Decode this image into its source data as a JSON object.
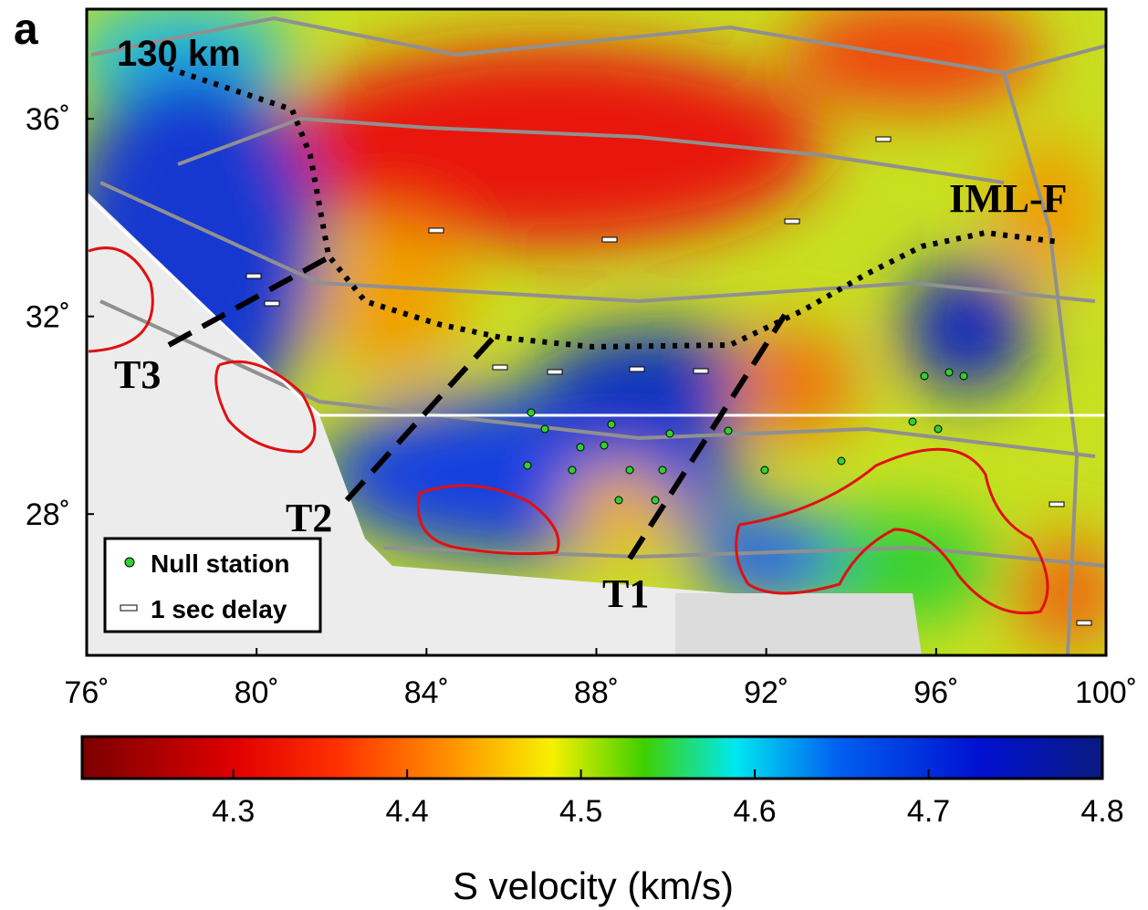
{
  "panel_label": "a",
  "map": {
    "annotations": {
      "depth": "130 km",
      "fault": "IML-F",
      "t1": "T1",
      "t2": "T2",
      "t3": "T3"
    },
    "legend": {
      "null_station": "Null station",
      "delay": "1 sec delay"
    },
    "xlim": [
      76,
      100
    ],
    "ylim": [
      25.14,
      38.22
    ],
    "xticks": [
      {
        "value": 76,
        "label": "76˚"
      },
      {
        "value": 80,
        "label": "80˚"
      },
      {
        "value": 84,
        "label": "84˚"
      },
      {
        "value": 88,
        "label": "88˚"
      },
      {
        "value": 92,
        "label": "92˚"
      },
      {
        "value": 96,
        "label": "96˚"
      },
      {
        "value": 100,
        "label": "100˚"
      }
    ],
    "yticks": [
      {
        "value": 28,
        "label": "28˚"
      },
      {
        "value": 32,
        "label": "32˚"
      },
      {
        "value": 36,
        "label": "36˚"
      }
    ]
  },
  "colorbar": {
    "label": "S velocity (km/s)",
    "lim": [
      4.213,
      4.8
    ],
    "ticks": [
      4.3,
      4.4,
      4.5,
      4.6,
      4.7,
      4.8
    ]
  }
}
